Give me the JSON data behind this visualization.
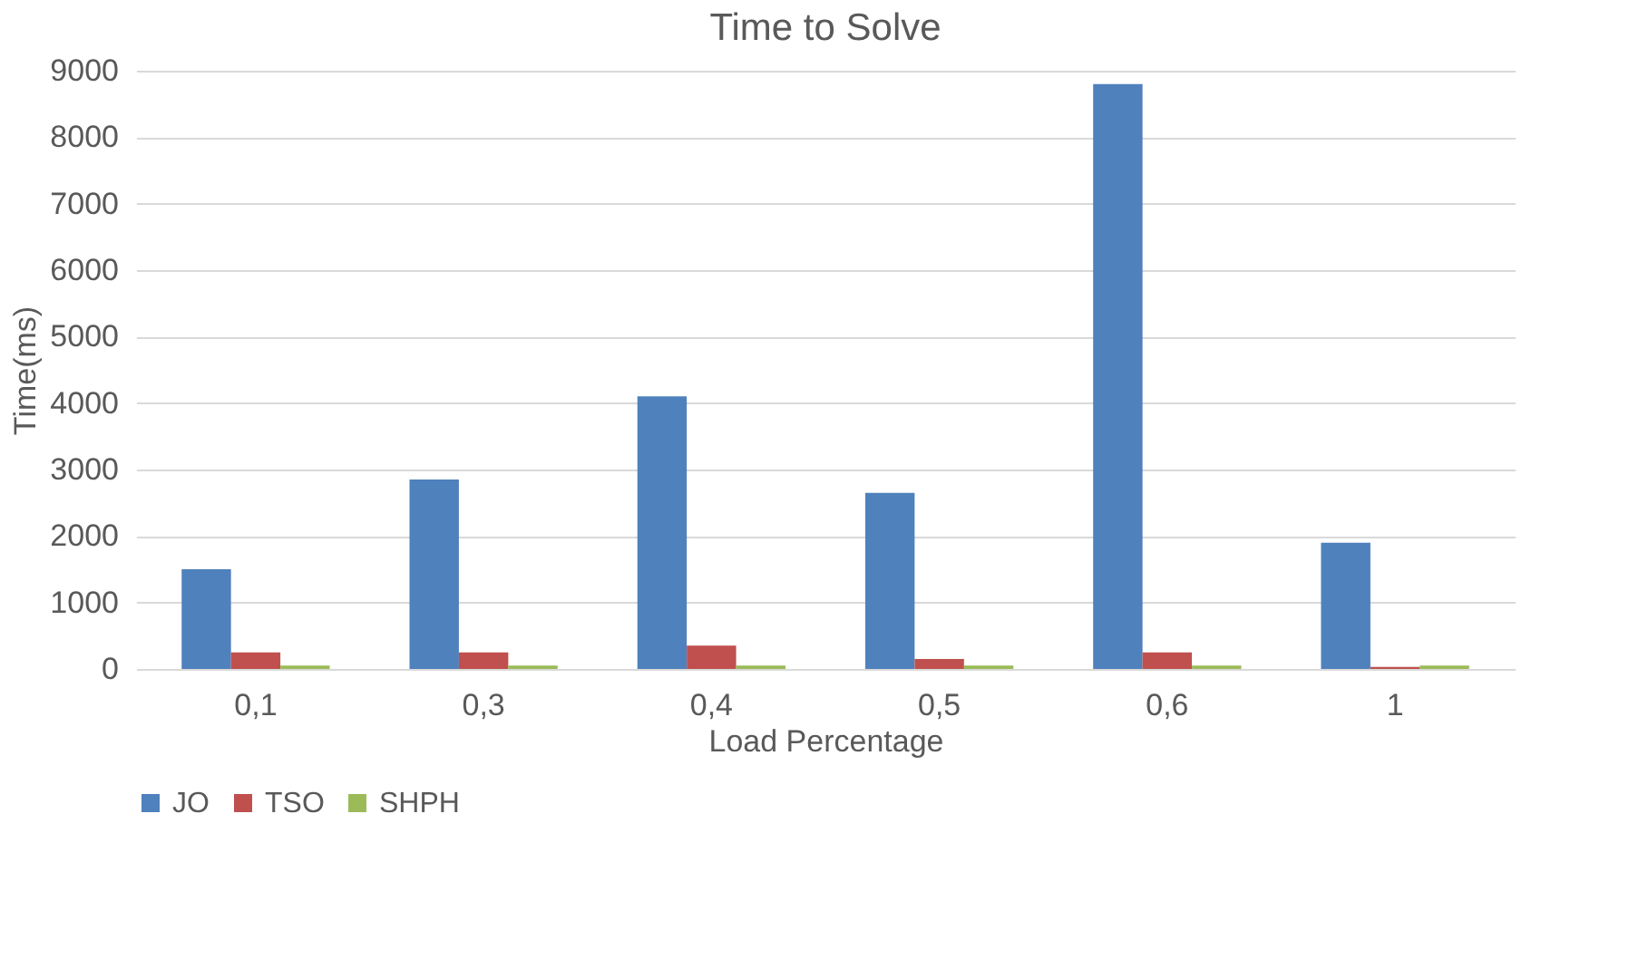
{
  "chart_data": {
    "type": "bar",
    "title": "Time to Solve",
    "xlabel": "Load Percentage",
    "ylabel": "Time(ms)",
    "categories": [
      "0,1",
      "0,3",
      "0,4",
      "0,5",
      "0,6",
      "1"
    ],
    "series": [
      {
        "name": "JO",
        "color": "#4f81bd",
        "values": [
          1500,
          2850,
          4100,
          2650,
          8800,
          1900
        ]
      },
      {
        "name": "TSO",
        "color": "#c0504d",
        "values": [
          250,
          250,
          350,
          150,
          250,
          30
        ]
      },
      {
        "name": "SHPH",
        "color": "#9bbb59",
        "values": [
          50,
          50,
          50,
          50,
          50,
          50
        ]
      }
    ],
    "ylim": [
      0,
      9000
    ],
    "yticks": [
      0,
      1000,
      2000,
      3000,
      4000,
      5000,
      6000,
      7000,
      8000,
      9000
    ],
    "grid": "y",
    "legend": "bottom"
  }
}
